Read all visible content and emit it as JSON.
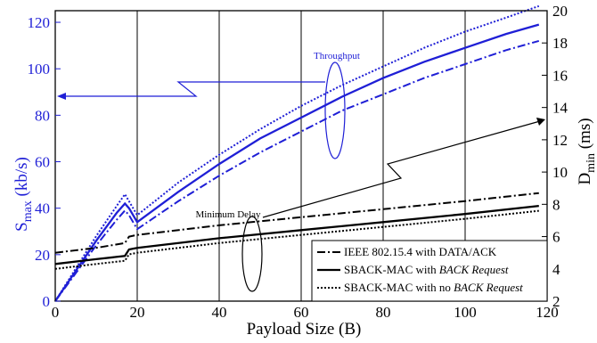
{
  "chart_data": {
    "type": "line",
    "xlabel": "Payload Size (B)",
    "ylabel_left": "S",
    "ylabel_left_sub": "max",
    "ylabel_left_unit": "(kb/s)",
    "ylabel_right": "D",
    "ylabel_right_sub": "min",
    "ylabel_right_unit": "(ms)",
    "xlim": [
      0,
      120
    ],
    "ylim_left": [
      0,
      125
    ],
    "ylim_right": [
      2,
      20
    ],
    "x_ticks": [
      "0",
      "20",
      "40",
      "60",
      "80",
      "100",
      "120"
    ],
    "y_left_ticks": [
      "0",
      "20",
      "40",
      "60",
      "80",
      "100",
      "120"
    ],
    "y_right_ticks": [
      "2",
      "4",
      "6",
      "8",
      "10",
      "12",
      "14",
      "16",
      "18",
      "20"
    ],
    "vertical_grid_x": [
      20,
      40,
      60,
      80,
      100
    ],
    "annotations": {
      "throughput": "Throughput",
      "minimum_delay": "Minimum Delay"
    },
    "legend_position": "bottom-right",
    "legend": [
      {
        "label_plain": "IEEE 802.15.4 with DATA/ACK",
        "label_italic": "",
        "style": "dashdot"
      },
      {
        "label_plain": "SBACK-MAC with ",
        "label_italic": "BACK Request",
        "style": "solid"
      },
      {
        "label_plain": "SBACK-MAC with no ",
        "label_italic": "BACK Request",
        "style": "dotted"
      }
    ],
    "colors": {
      "throughput": "#1f1fd6",
      "delay": "#000000"
    },
    "series": [
      {
        "group": "throughput",
        "style": "dotted",
        "axis": "left",
        "x": [
          0,
          5,
          10,
          15,
          17,
          18,
          20,
          30,
          40,
          50,
          60,
          70,
          80,
          90,
          100,
          110,
          118
        ],
        "y": [
          0,
          14,
          28,
          41,
          46,
          43,
          37,
          51,
          63,
          74,
          84,
          93,
          101,
          109,
          116,
          122,
          127
        ]
      },
      {
        "group": "throughput",
        "style": "solid",
        "axis": "left",
        "x": [
          0,
          5,
          10,
          15,
          17,
          18,
          20,
          30,
          40,
          50,
          60,
          70,
          80,
          90,
          100,
          110,
          118
        ],
        "y": [
          0,
          13,
          26,
          38,
          42,
          40,
          34,
          47,
          59,
          70,
          79,
          88,
          96,
          103,
          109,
          115,
          119
        ]
      },
      {
        "group": "throughput",
        "style": "dashdot",
        "axis": "left",
        "x": [
          0,
          5,
          10,
          15,
          17,
          18,
          20,
          30,
          40,
          50,
          60,
          70,
          80,
          90,
          100,
          110,
          118
        ],
        "y": [
          0,
          12,
          24,
          35,
          39,
          37,
          31,
          43,
          54,
          64,
          73,
          82,
          89,
          96,
          102,
          108,
          112
        ]
      },
      {
        "group": "delay",
        "style": "dashdot",
        "axis": "right",
        "x": [
          0,
          10,
          17,
          18,
          20,
          40,
          60,
          80,
          100,
          118
        ],
        "y": [
          5.0,
          5.3,
          5.6,
          6.0,
          6.1,
          6.7,
          7.2,
          7.7,
          8.2,
          8.7
        ]
      },
      {
        "group": "delay",
        "style": "solid",
        "axis": "right",
        "x": [
          0,
          10,
          17,
          18,
          20,
          40,
          60,
          80,
          100,
          118
        ],
        "y": [
          4.3,
          4.6,
          4.8,
          5.2,
          5.3,
          5.9,
          6.4,
          6.9,
          7.4,
          7.9
        ]
      },
      {
        "group": "delay",
        "style": "dotted",
        "axis": "right",
        "x": [
          0,
          10,
          17,
          18,
          20,
          40,
          60,
          80,
          100,
          118
        ],
        "y": [
          4.0,
          4.3,
          4.5,
          4.9,
          5.0,
          5.6,
          6.1,
          6.6,
          7.1,
          7.6
        ]
      }
    ]
  }
}
